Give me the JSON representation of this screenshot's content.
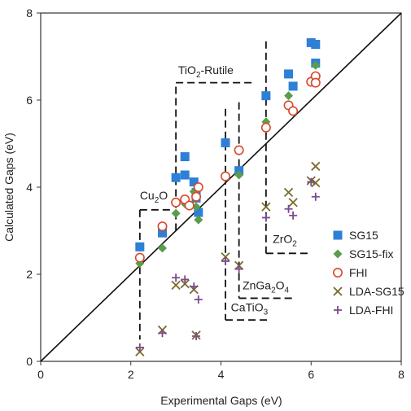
{
  "chart_data": {
    "type": "scatter",
    "title": "",
    "xlabel": "Experimental Gaps (eV)",
    "ylabel": "Calculated Gaps (eV)",
    "xlim": [
      0,
      8
    ],
    "ylim": [
      0,
      8
    ],
    "xticks": [
      0,
      2,
      4,
      6,
      8
    ],
    "yticks": [
      0,
      2,
      4,
      6,
      8
    ],
    "grid": false,
    "legend_position": "bottom-right",
    "reference_line": "y = x",
    "series": [
      {
        "name": "SG15",
        "marker": "square",
        "color": "#2e7fd6",
        "points": [
          [
            2.2,
            2.63
          ],
          [
            2.7,
            2.95
          ],
          [
            3.0,
            4.22
          ],
          [
            3.2,
            4.28
          ],
          [
            3.2,
            4.7
          ],
          [
            3.4,
            4.12
          ],
          [
            3.45,
            3.88
          ],
          [
            3.45,
            3.75
          ],
          [
            3.5,
            3.42
          ],
          [
            4.1,
            5.02
          ],
          [
            4.4,
            4.38
          ],
          [
            5.0,
            6.1
          ],
          [
            5.5,
            6.6
          ],
          [
            5.6,
            6.32
          ],
          [
            6.0,
            7.32
          ],
          [
            6.1,
            7.28
          ],
          [
            6.1,
            6.85
          ]
        ]
      },
      {
        "name": "SG15-fix",
        "marker": "diamond",
        "color": "#5a9e4b",
        "points": [
          [
            2.2,
            2.25
          ],
          [
            2.7,
            2.6
          ],
          [
            3.0,
            3.4
          ],
          [
            3.2,
            3.62
          ],
          [
            3.4,
            3.9
          ],
          [
            3.45,
            3.55
          ],
          [
            3.5,
            3.25
          ],
          [
            4.1,
            4.22
          ],
          [
            4.4,
            4.28
          ],
          [
            5.0,
            5.5
          ],
          [
            5.5,
            6.1
          ],
          [
            6.0,
            6.45
          ],
          [
            6.1,
            6.8
          ]
        ]
      },
      {
        "name": "FHI",
        "marker": "circle",
        "color": "#d9472b",
        "points": [
          [
            2.2,
            2.38
          ],
          [
            2.7,
            3.1
          ],
          [
            3.0,
            3.65
          ],
          [
            3.2,
            3.72
          ],
          [
            3.3,
            3.58
          ],
          [
            3.45,
            3.78
          ],
          [
            3.5,
            4.0
          ],
          [
            4.1,
            4.25
          ],
          [
            4.4,
            4.85
          ],
          [
            5.0,
            5.37
          ],
          [
            5.5,
            5.88
          ],
          [
            5.6,
            5.75
          ],
          [
            6.0,
            6.42
          ],
          [
            6.1,
            6.55
          ],
          [
            6.1,
            6.4
          ]
        ]
      },
      {
        "name": "LDA-SG15",
        "marker": "x",
        "color": "#7a6a2a",
        "points": [
          [
            2.2,
            0.22
          ],
          [
            2.7,
            0.72
          ],
          [
            3.0,
            1.75
          ],
          [
            3.2,
            1.78
          ],
          [
            3.4,
            1.65
          ],
          [
            3.45,
            0.6
          ],
          [
            4.1,
            2.4
          ],
          [
            4.4,
            2.2
          ],
          [
            5.0,
            3.55
          ],
          [
            5.5,
            3.88
          ],
          [
            5.6,
            3.65
          ],
          [
            6.0,
            4.15
          ],
          [
            6.1,
            4.48
          ],
          [
            6.1,
            4.1
          ]
        ]
      },
      {
        "name": "LDA-FHI",
        "marker": "plus",
        "color": "#7b4a8e",
        "points": [
          [
            2.2,
            0.32
          ],
          [
            2.7,
            0.65
          ],
          [
            3.0,
            1.92
          ],
          [
            3.2,
            1.88
          ],
          [
            3.4,
            1.72
          ],
          [
            3.45,
            0.58
          ],
          [
            3.5,
            1.42
          ],
          [
            4.1,
            2.3
          ],
          [
            4.4,
            2.12
          ],
          [
            5.0,
            3.3
          ],
          [
            5.5,
            3.5
          ],
          [
            5.6,
            3.35
          ],
          [
            6.0,
            4.12
          ],
          [
            6.1,
            3.78
          ]
        ]
      }
    ],
    "annotations": [
      {
        "id": "tio2",
        "base": "TiO",
        "sub": "2",
        "rest": "-Rutile",
        "text_at": [
          3.05,
          6.6
        ],
        "lines": [
          [
            [
              3.0,
              3.0
            ],
            [
              3.0,
              6.4
            ]
          ],
          [
            [
              3.0,
              6.4
            ],
            [
              4.7,
              6.4
            ]
          ]
        ]
      },
      {
        "id": "cu2o",
        "base": "Cu",
        "sub": "2",
        "rest": "O",
        "text_at": [
          2.2,
          3.72
        ],
        "lines": [
          [
            [
              2.2,
              3.48
            ],
            [
              2.2,
              0.5
            ]
          ],
          [
            [
              2.2,
              3.48
            ],
            [
              2.95,
              3.48
            ]
          ]
        ]
      },
      {
        "id": "catio3",
        "base": "CaTiO",
        "sub": "3",
        "rest": "",
        "text_at": [
          4.22,
          1.15
        ],
        "lines": [
          [
            [
              4.1,
              5.8
            ],
            [
              4.1,
              0.95
            ]
          ],
          [
            [
              4.1,
              0.95
            ],
            [
              5.05,
              0.95
            ]
          ]
        ]
      },
      {
        "id": "zngao",
        "base": "ZnGa",
        "sub": "2",
        "rest": "O",
        "sub2": "4",
        "text_at": [
          4.48,
          1.65
        ],
        "lines": [
          [
            [
              4.4,
              5.95
            ],
            [
              4.4,
              1.45
            ]
          ],
          [
            [
              4.4,
              1.45
            ],
            [
              5.6,
              1.45
            ]
          ]
        ]
      },
      {
        "id": "zro2",
        "base": "ZrO",
        "sub": "2",
        "rest": "",
        "text_at": [
          5.15,
          2.72
        ],
        "lines": [
          [
            [
              5.0,
              7.35
            ],
            [
              5.0,
              2.48
            ]
          ],
          [
            [
              5.0,
              2.48
            ],
            [
              6.0,
              2.48
            ]
          ]
        ]
      }
    ]
  }
}
